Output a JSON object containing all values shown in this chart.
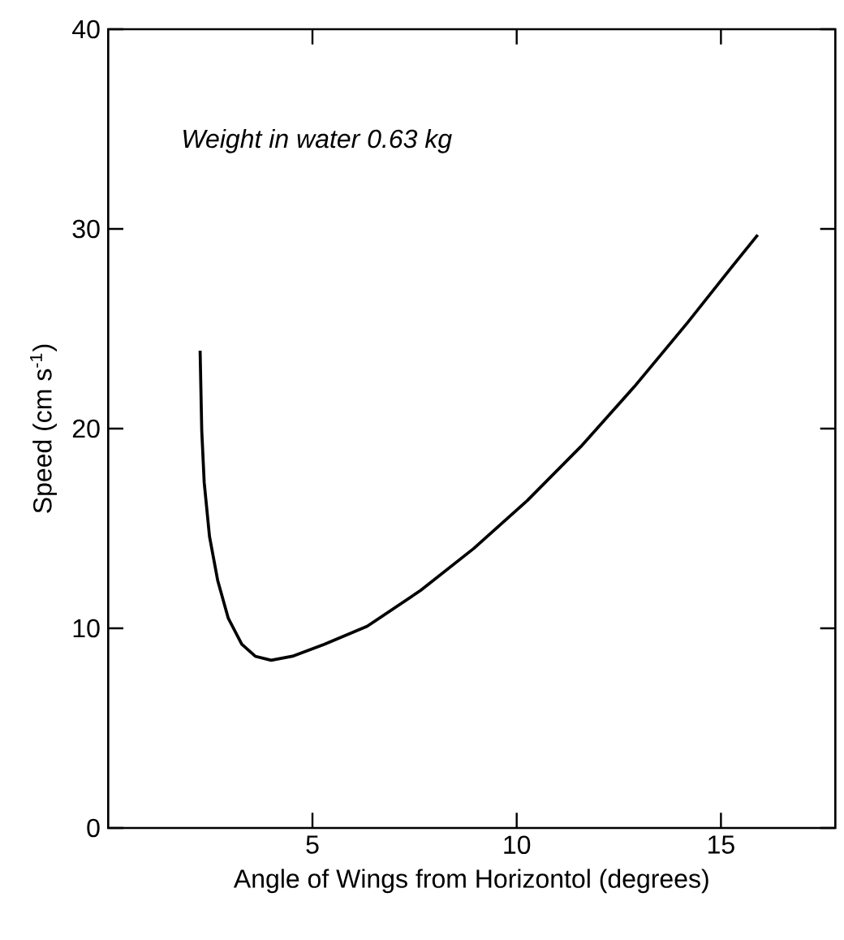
{
  "chart_data": {
    "type": "line",
    "xlabel": "Angle of Wings from Horizontol (degrees)",
    "ylabel": "Speed (cm s$^{-1}$)",
    "annotations": [
      "Weight in water 0.63 kg"
    ],
    "xlim": [
      0,
      17.8
    ],
    "ylim": [
      0,
      40
    ],
    "xticks": [
      5,
      10,
      15
    ],
    "yticks": [
      0,
      10,
      20,
      30,
      40
    ],
    "marker": "none",
    "line_style": "solid",
    "series": [
      {
        "color": "#000000",
        "x": [
          2.25,
          2.29,
          2.35,
          2.48,
          2.68,
          2.94,
          3.27,
          3.6,
          3.99,
          4.51,
          5.29,
          6.34,
          7.65,
          8.95,
          10.26,
          11.57,
          12.88,
          14.18,
          15.23,
          15.9
        ],
        "values": [
          23.9,
          19.9,
          17.3,
          14.6,
          12.4,
          10.5,
          9.2,
          8.6,
          8.4,
          8.6,
          9.2,
          10.1,
          11.9,
          14.0,
          16.4,
          19.1,
          22.1,
          25.3,
          28.0,
          29.7
        ]
      }
    ]
  }
}
